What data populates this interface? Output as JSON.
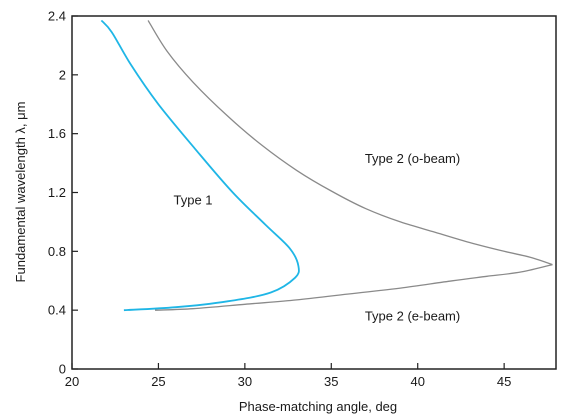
{
  "chart_data": {
    "type": "line",
    "xlabel": "Phase-matching angle, deg",
    "ylabel": "Fundamental wavelength λ, μm",
    "xlim": [
      20,
      48
    ],
    "ylim": [
      0,
      2.4
    ],
    "x_ticks": [
      "20",
      "25",
      "30",
      "35",
      "40",
      "45"
    ],
    "y_ticks": [
      "0",
      "0.4",
      "0.8",
      "1.2",
      "1.6",
      "2",
      "2.4"
    ],
    "x_tick_values": [
      20,
      25,
      30,
      35,
      40,
      45
    ],
    "y_tick_values": [
      0,
      0.4,
      0.8,
      1.2,
      1.6,
      2.0,
      2.4
    ],
    "grid": false,
    "series": [
      {
        "color": "#1fb6e6",
        "points": [
          [
            23.0,
            0.4
          ],
          [
            26.0,
            0.42
          ],
          [
            29.0,
            0.46
          ],
          [
            31.5,
            0.52
          ],
          [
            32.9,
            0.62
          ],
          [
            33.1,
            0.7
          ],
          [
            32.6,
            0.82
          ],
          [
            31.2,
            0.98
          ],
          [
            29.3,
            1.2
          ],
          [
            27.1,
            1.5
          ],
          [
            25.0,
            1.8
          ],
          [
            23.4,
            2.07
          ],
          [
            22.3,
            2.29
          ],
          [
            21.7,
            2.37
          ]
        ]
      },
      {
        "color": "#8a8a8a",
        "points": [
          [
            24.4,
            2.37
          ],
          [
            25.5,
            2.16
          ],
          [
            27.0,
            1.95
          ],
          [
            29.0,
            1.72
          ],
          [
            31.0,
            1.52
          ],
          [
            33.0,
            1.35
          ],
          [
            35.0,
            1.21
          ],
          [
            37.0,
            1.09
          ],
          [
            39.0,
            1.0
          ],
          [
            41.0,
            0.93
          ],
          [
            43.0,
            0.86
          ],
          [
            45.0,
            0.8
          ],
          [
            46.5,
            0.76
          ],
          [
            47.8,
            0.71
          ]
        ]
      },
      {
        "color": "#8a8a8a",
        "points": [
          [
            24.8,
            0.4
          ],
          [
            27.0,
            0.41
          ],
          [
            30.0,
            0.44
          ],
          [
            33.0,
            0.47
          ],
          [
            36.0,
            0.51
          ],
          [
            39.0,
            0.55
          ],
          [
            42.0,
            0.6
          ],
          [
            44.0,
            0.63
          ],
          [
            46.0,
            0.66
          ],
          [
            47.8,
            0.71
          ]
        ]
      }
    ],
    "annotations": [
      {
        "text": "Type 1",
        "x": 27.0,
        "y": 1.12
      },
      {
        "text": "Type 2 (o-beam)",
        "x": 39.7,
        "y": 1.4
      },
      {
        "text": "Type 2 (e-beam)",
        "x": 39.7,
        "y": 0.33
      }
    ]
  }
}
